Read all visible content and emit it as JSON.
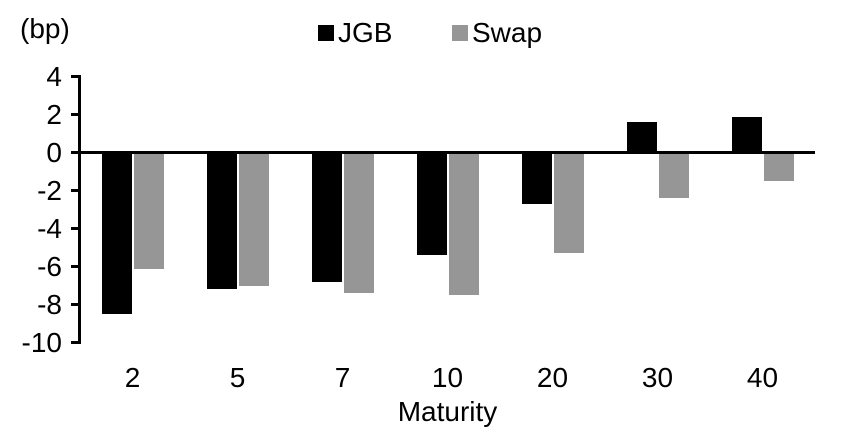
{
  "chart_data": {
    "type": "bar",
    "title": "",
    "unit_label": "(bp)",
    "xlabel": "Maturity",
    "categories": [
      "2",
      "5",
      "7",
      "10",
      "20",
      "30",
      "40"
    ],
    "series": [
      {
        "name": "JGB",
        "color": "#000000",
        "values": [
          -8.5,
          -7.2,
          -6.8,
          -5.4,
          -2.7,
          1.6,
          1.9
        ]
      },
      {
        "name": "Swap",
        "color": "#969696",
        "values": [
          -6.1,
          -7.0,
          -7.4,
          -7.5,
          -5.3,
          -2.4,
          -1.5
        ]
      }
    ],
    "yticks": [
      4,
      2,
      0,
      -2,
      -4,
      -6,
      -8,
      -10
    ],
    "ylim": [
      -10,
      4
    ],
    "legend_position": "top-center",
    "grid": false,
    "axis_color": "#000000",
    "background_color": "#ffffff"
  }
}
